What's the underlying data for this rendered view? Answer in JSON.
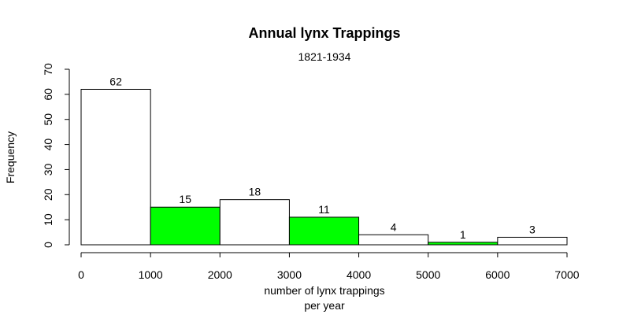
{
  "chart_data": {
    "type": "bar",
    "title": "Annual lynx Trappings",
    "subtitle": "1821-1934",
    "xlabel_lines": [
      "number of lynx trappings",
      "per year"
    ],
    "ylabel": "Frequency",
    "bins": [
      {
        "start": 0,
        "end": 1000,
        "value": 62,
        "label": "62",
        "color": "#ffffff"
      },
      {
        "start": 1000,
        "end": 2000,
        "value": 15,
        "label": "15",
        "color": "#00ff00"
      },
      {
        "start": 2000,
        "end": 3000,
        "value": 18,
        "label": "18",
        "color": "#ffffff"
      },
      {
        "start": 3000,
        "end": 4000,
        "value": 11,
        "label": "11",
        "color": "#00ff00"
      },
      {
        "start": 4000,
        "end": 5000,
        "value": 4,
        "label": "4",
        "color": "#ffffff"
      },
      {
        "start": 5000,
        "end": 6000,
        "value": 1,
        "label": "1",
        "color": "#00ff00"
      },
      {
        "start": 6000,
        "end": 7000,
        "value": 3,
        "label": "3",
        "color": "#ffffff"
      }
    ],
    "xlim": [
      0,
      7000
    ],
    "ylim": [
      0,
      70
    ],
    "xticks": [
      {
        "value": 0,
        "label": "0"
      },
      {
        "value": 1000,
        "label": "1000"
      },
      {
        "value": 2000,
        "label": "2000"
      },
      {
        "value": 3000,
        "label": "3000"
      },
      {
        "value": 4000,
        "label": "4000"
      },
      {
        "value": 5000,
        "label": "5000"
      },
      {
        "value": 6000,
        "label": "6000"
      },
      {
        "value": 7000,
        "label": "7000"
      }
    ],
    "yticks": [
      {
        "value": 0,
        "label": "0"
      },
      {
        "value": 10,
        "label": "10"
      },
      {
        "value": 20,
        "label": "20"
      },
      {
        "value": 30,
        "label": "30"
      },
      {
        "value": 40,
        "label": "40"
      },
      {
        "value": 50,
        "label": "50"
      },
      {
        "value": 60,
        "label": "60"
      },
      {
        "value": 70,
        "label": "70"
      }
    ],
    "grid": false,
    "legend": false,
    "colors": {
      "bar_stroke": "#000000",
      "text": "#000000"
    }
  }
}
